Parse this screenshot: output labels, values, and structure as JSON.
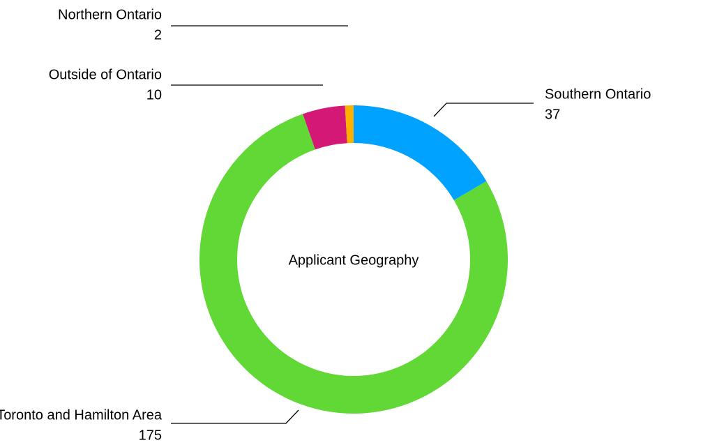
{
  "chart_data": {
    "type": "donut",
    "title": "Applicant Geography",
    "categories": [
      "Southern Ontario",
      "Toronto and Hamilton Area",
      "Outside of Ontario",
      "Northern Ontario"
    ],
    "values": [
      37,
      175,
      10,
      2
    ],
    "colors": [
      "#00a2ff",
      "#61d836",
      "#d31876",
      "#fbb000"
    ]
  }
}
